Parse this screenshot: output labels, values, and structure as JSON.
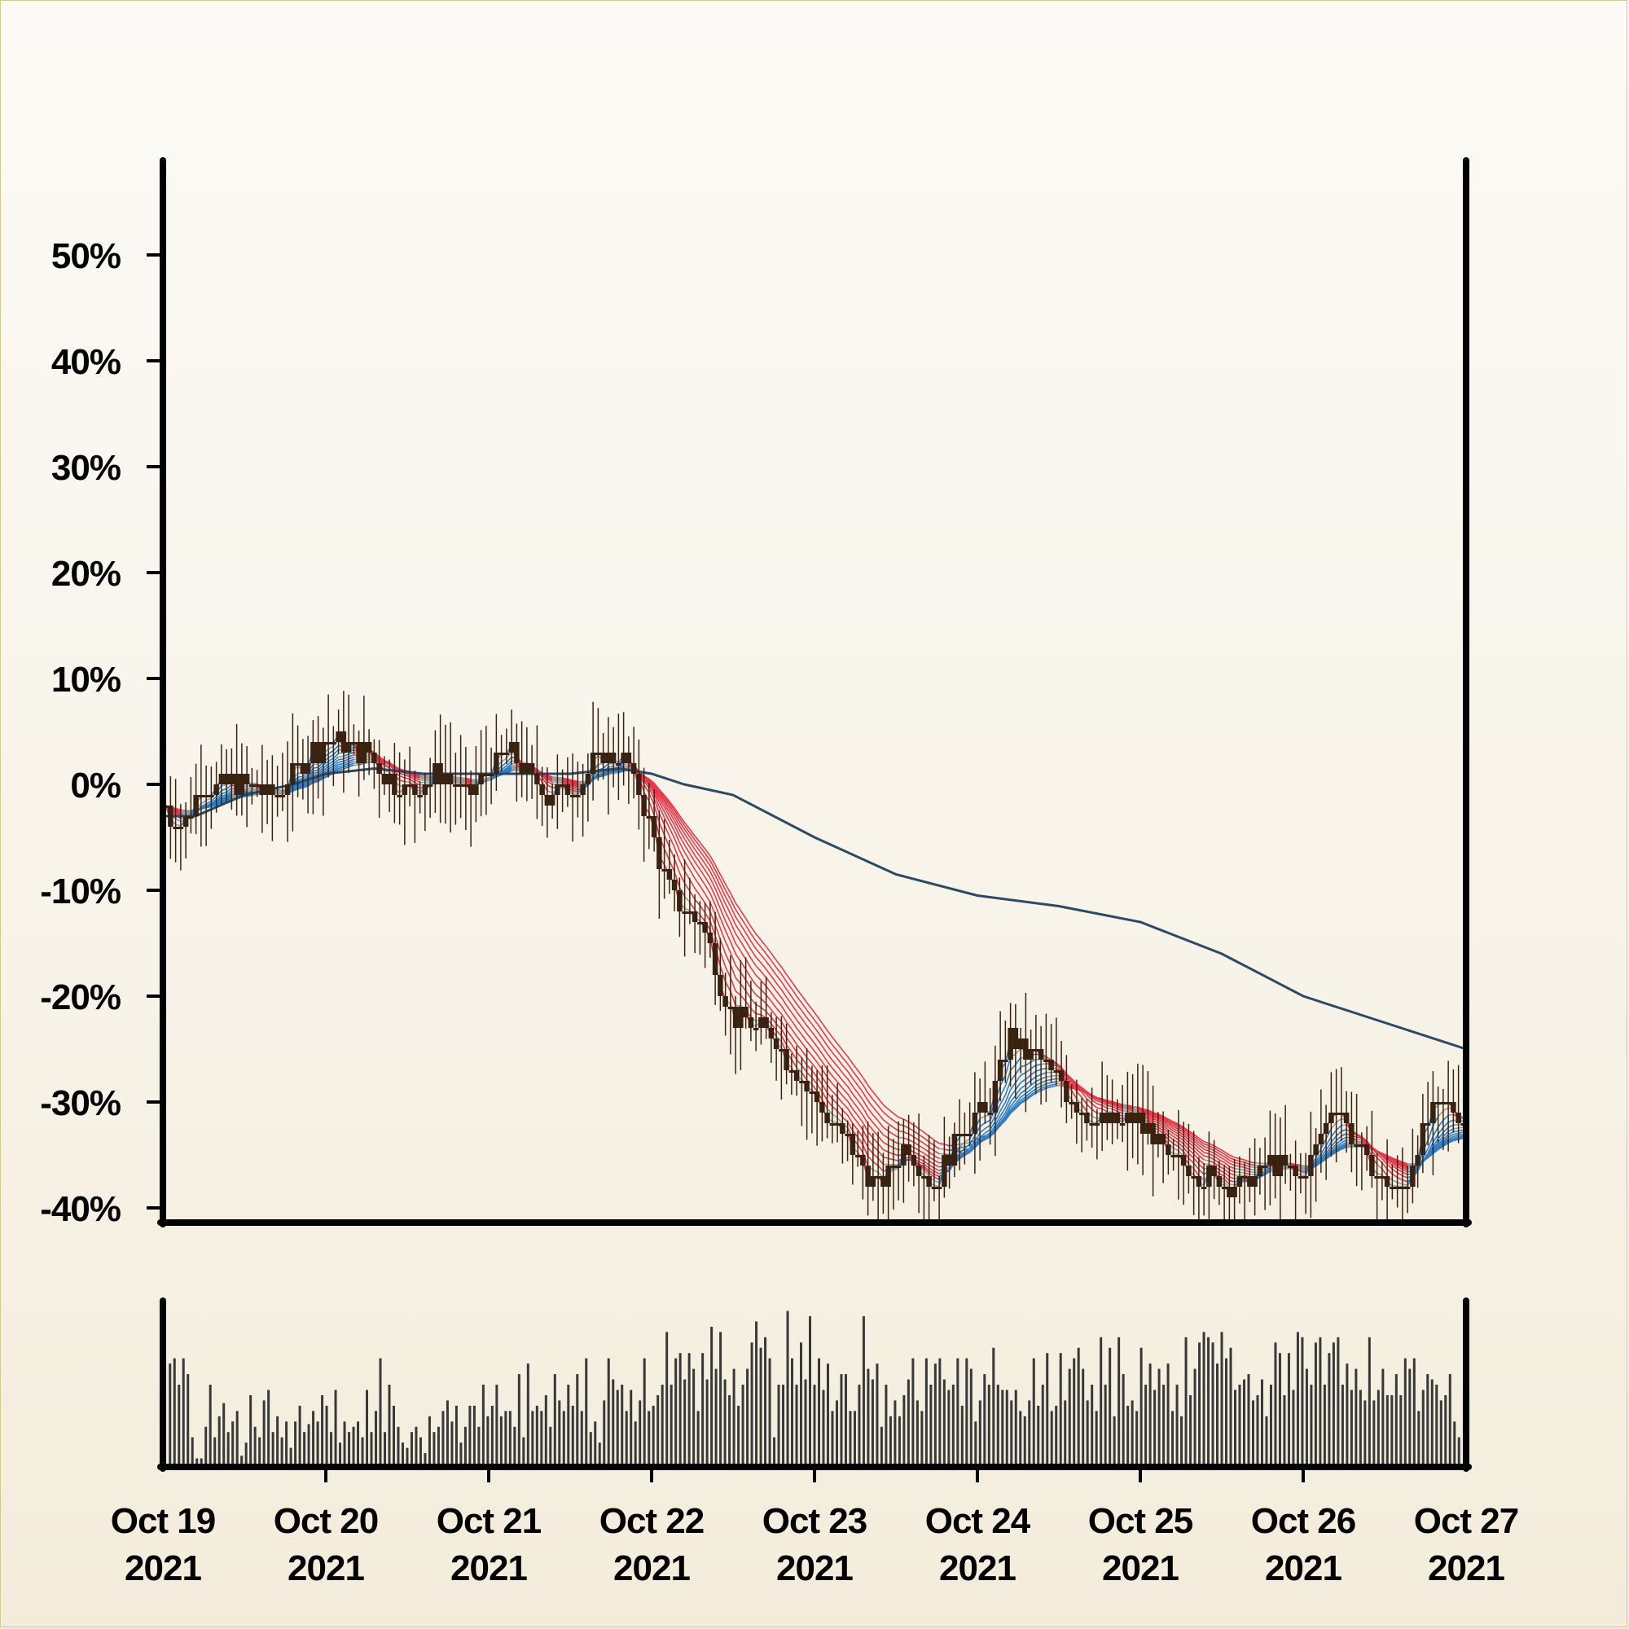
{
  "chart_data": [
    {
      "type": "candlestick",
      "panel": "price",
      "title": "",
      "xlabel": "",
      "ylabel": "",
      "y_unit": "percent",
      "ylim": [
        -40,
        58
      ],
      "yticks": [
        50,
        40,
        30,
        20,
        10,
        0,
        -10,
        -20,
        -30,
        -40
      ],
      "ytick_labels": [
        "50%",
        "40%",
        "30%",
        "20%",
        "10%",
        "0%",
        "-10%",
        "-20%",
        "-30%",
        "-40%"
      ],
      "x_range": [
        "2021-10-19",
        "2021-10-27"
      ],
      "xtick_labels": [
        [
          "Oct 19",
          "2021"
        ],
        [
          "Oct 20",
          "2021"
        ],
        [
          "Oct 21",
          "2021"
        ],
        [
          "Oct 22",
          "2021"
        ],
        [
          "Oct 23",
          "2021"
        ],
        [
          "Oct 24",
          "2021"
        ],
        [
          "Oct 25",
          "2021"
        ],
        [
          "Oct 26",
          "2021"
        ],
        [
          "Oct 27",
          "2021"
        ]
      ],
      "grid": false,
      "candle_color": "#3a2210",
      "close_path": [
        [
          0.0,
          -2
        ],
        [
          0.1,
          -4
        ],
        [
          0.25,
          0
        ],
        [
          0.5,
          0
        ],
        [
          0.7,
          -1
        ],
        [
          0.9,
          3
        ],
        [
          1.0,
          4
        ],
        [
          1.25,
          3
        ],
        [
          1.5,
          -1
        ],
        [
          1.7,
          1
        ],
        [
          1.9,
          -1
        ],
        [
          2.0,
          2
        ],
        [
          2.15,
          3
        ],
        [
          2.35,
          -1
        ],
        [
          2.55,
          0
        ],
        [
          2.7,
          3
        ],
        [
          2.85,
          2
        ],
        [
          3.0,
          -4
        ],
        [
          3.1,
          -10
        ],
        [
          3.3,
          -13
        ],
        [
          3.5,
          -22
        ],
        [
          3.75,
          -24
        ],
        [
          4.0,
          -30
        ],
        [
          4.2,
          -34
        ],
        [
          4.4,
          -38
        ],
        [
          4.55,
          -34
        ],
        [
          4.75,
          -38
        ],
        [
          4.9,
          -32
        ],
        [
          5.05,
          -31
        ],
        [
          5.2,
          -24
        ],
        [
          5.45,
          -27
        ],
        [
          5.55,
          -29
        ],
        [
          5.75,
          -32
        ],
        [
          6.0,
          -32
        ],
        [
          6.2,
          -36
        ],
        [
          6.4,
          -37
        ],
        [
          6.6,
          -38
        ],
        [
          6.8,
          -36
        ],
        [
          7.0,
          -37
        ],
        [
          7.2,
          -30
        ],
        [
          7.4,
          -36
        ],
        [
          7.6,
          -39
        ],
        [
          7.75,
          -32
        ],
        [
          7.9,
          -30
        ],
        [
          8.0,
          -32
        ]
      ],
      "moving_average_ribbon": {
        "count": 12,
        "colors": {
          "rising": "#2e7cc4",
          "falling": "#e8394a",
          "mixed_up": "#7fc160",
          "mixed_down": "#f07820",
          "neutral": "#9c9c9c"
        }
      },
      "long_moving_average": {
        "color": "#2b4a66",
        "points": [
          [
            0.0,
            -3
          ],
          [
            0.2,
            -3
          ],
          [
            0.5,
            -1
          ],
          [
            0.8,
            0
          ],
          [
            1.0,
            1
          ],
          [
            1.3,
            1.5
          ],
          [
            1.6,
            1
          ],
          [
            2.0,
            1
          ],
          [
            2.5,
            1
          ],
          [
            2.8,
            1.5
          ],
          [
            3.0,
            1
          ],
          [
            3.2,
            0
          ],
          [
            3.5,
            -1
          ],
          [
            4.0,
            -5
          ],
          [
            4.5,
            -8.5
          ],
          [
            5.0,
            -10.5
          ],
          [
            5.5,
            -11.5
          ],
          [
            6.0,
            -13
          ],
          [
            6.5,
            -16
          ],
          [
            7.0,
            -20
          ],
          [
            7.5,
            -22.5
          ],
          [
            8.0,
            -25
          ]
        ]
      }
    },
    {
      "type": "bar",
      "panel": "volume",
      "title": "",
      "xlabel": "",
      "ylabel": "",
      "bar_color": "#383838",
      "values": [
        38,
        40,
        30,
        40,
        34,
        10,
        2,
        2,
        14,
        30,
        10,
        18,
        23,
        12,
        16,
        20,
        3,
        8,
        26,
        14,
        10,
        24,
        28,
        12,
        18,
        10,
        16,
        6,
        16,
        22,
        12,
        15,
        20,
        16,
        26,
        22,
        12,
        28,
        8,
        16,
        12,
        14,
        16,
        10,
        28,
        12,
        20,
        40,
        12,
        30,
        22,
        14,
        8,
        6,
        12,
        14,
        10,
        4,
        18,
        12,
        14,
        20,
        24,
        16,
        22,
        8,
        14,
        22,
        22,
        14,
        30,
        18,
        22,
        30,
        18,
        20,
        20,
        14,
        34,
        10,
        38,
        20,
        22,
        20,
        26,
        14,
        34,
        24,
        20,
        30,
        22,
        34,
        20,
        40,
        12,
        16,
        8,
        24,
        40,
        32,
        28,
        30,
        20,
        28,
        16,
        24,
        40,
        20,
        22,
        26,
        30,
        50,
        30,
        40,
        42,
        32,
        42,
        36,
        20,
        42,
        32,
        52,
        36,
        50,
        32,
        26,
        36,
        22,
        30,
        36,
        46,
        54,
        44,
        48,
        40,
        10,
        30,
        30,
        58,
        40,
        30,
        46,
        32,
        56,
        30,
        40,
        28,
        38,
        20,
        24,
        34,
        34,
        20,
        20,
        30,
        56,
        36,
        32,
        38,
        14,
        30,
        18,
        24,
        18,
        26,
        32,
        40,
        24,
        20,
        40,
        30,
        38,
        40,
        32,
        28,
        30,
        40,
        22,
        40,
        36,
        16,
        24,
        34,
        30,
        44,
        30,
        28,
        28,
        24,
        28,
        20,
        18,
        24,
        40,
        22,
        30,
        42,
        20,
        22,
        42,
        24,
        36,
        40,
        44,
        36,
        24,
        30,
        20,
        48,
        30,
        44,
        18,
        48,
        34,
        22,
        24,
        20,
        44,
        30,
        38,
        28,
        36,
        30,
        38,
        20,
        30,
        18,
        48,
        26,
        36,
        46,
        50,
        48,
        46,
        38,
        50,
        40,
        44,
        28,
        30,
        32,
        34,
        24,
        26,
        32,
        18,
        30,
        46,
        42,
        26,
        42,
        28,
        50,
        48,
        36,
        30,
        46,
        48,
        30,
        42,
        46,
        48,
        30,
        38,
        28,
        36,
        28,
        24,
        48,
        24,
        28,
        36,
        26,
        26,
        34,
        26,
        40,
        36,
        40,
        20,
        28,
        34,
        32,
        30,
        24,
        26,
        34,
        16,
        10
      ]
    }
  ]
}
